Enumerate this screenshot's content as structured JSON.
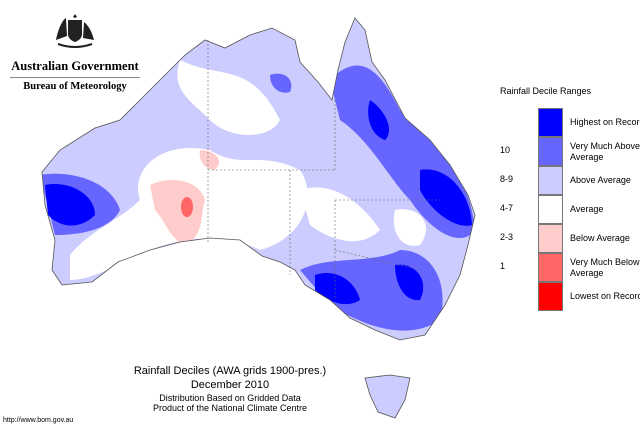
{
  "logo": {
    "crest_text": "Commonwealth coat of arms",
    "government": "Australian Government",
    "agency": "Bureau of Meteorology"
  },
  "legend": {
    "title": "Rainfall Decile Ranges",
    "items": [
      {
        "range": "",
        "label": "Highest on Record",
        "color": "#0000ff"
      },
      {
        "range": "10",
        "label": "Very Much Above Average",
        "color": "#6666ff"
      },
      {
        "range": "8-9",
        "label": "Above Average",
        "color": "#ccccff"
      },
      {
        "range": "4-7",
        "label": "Average",
        "color": "#ffffff"
      },
      {
        "range": "2-3",
        "label": "Below Average",
        "color": "#ffcccc"
      },
      {
        "range": "1",
        "label": "Very Much Below Average",
        "color": "#ff6666"
      },
      {
        "range": "",
        "label": "Lowest on Record",
        "color": "#ff0000"
      }
    ]
  },
  "caption": {
    "title": "Rainfall Deciles (AWA grids 1900-pres.)",
    "period": "December 2010",
    "line3": "Distribution Based on Gridded Data",
    "line4": "Product of the National Climate Centre"
  },
  "footer": {
    "url": "http://www.bom.gov.au"
  }
}
